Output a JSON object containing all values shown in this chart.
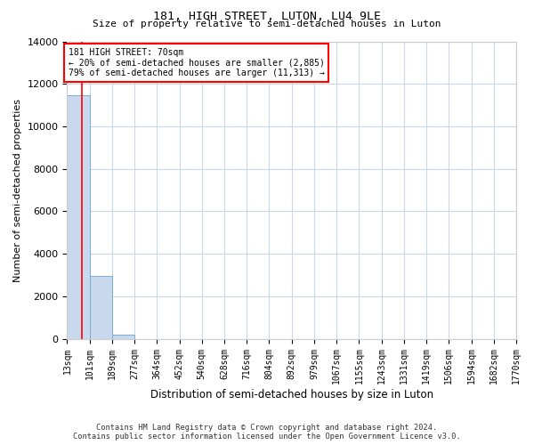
{
  "title": "181, HIGH STREET, LUTON, LU4 9LE",
  "subtitle": "Size of property relative to semi-detached houses in Luton",
  "xlabel": "Distribution of semi-detached houses by size in Luton",
  "ylabel": "Number of semi-detached properties",
  "bin_labels": [
    "13sqm",
    "101sqm",
    "189sqm",
    "277sqm",
    "364sqm",
    "452sqm",
    "540sqm",
    "628sqm",
    "716sqm",
    "804sqm",
    "892sqm",
    "979sqm",
    "1067sqm",
    "1155sqm",
    "1243sqm",
    "1331sqm",
    "1419sqm",
    "1506sqm",
    "1594sqm",
    "1682sqm",
    "1770sqm"
  ],
  "bar_values": [
    11450,
    2950,
    200,
    0,
    0,
    0,
    0,
    0,
    0,
    0,
    0,
    0,
    0,
    0,
    0,
    0,
    0,
    0,
    0,
    0
  ],
  "bar_color": "#c8d9ee",
  "bar_edge_color": "#7aadd4",
  "annotation_text": "181 HIGH STREET: 70sqm\n← 20% of semi-detached houses are smaller (2,885)\n79% of semi-detached houses are larger (11,313) →",
  "vline_x": 0.65,
  "ylim": [
    0,
    14000
  ],
  "yticks": [
    0,
    2000,
    4000,
    6000,
    8000,
    10000,
    12000,
    14000
  ],
  "footer_line1": "Contains HM Land Registry data © Crown copyright and database right 2024.",
  "footer_line2": "Contains public sector information licensed under the Open Government Licence v3.0.",
  "bg_color": "#ffffff",
  "grid_color": "#c8d8e8"
}
